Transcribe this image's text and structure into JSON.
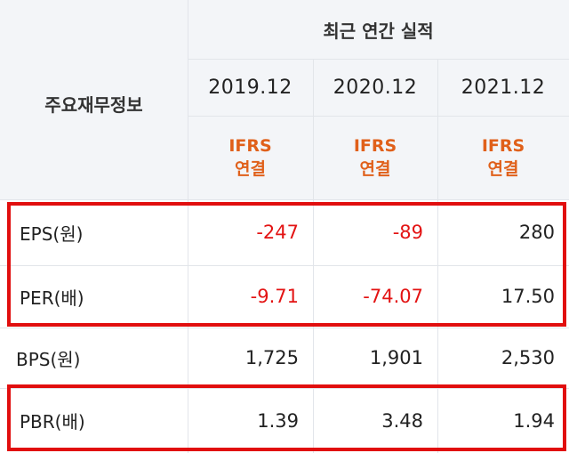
{
  "header": {
    "section_title": "최근 연간 실적",
    "row_title": "주요재무정보",
    "years": [
      "2019.12",
      "2020.12",
      "2021.12"
    ],
    "standard": [
      {
        "line1": "IFRS",
        "line2": "연결"
      },
      {
        "line1": "IFRS",
        "line2": "연결"
      },
      {
        "line1": "IFRS",
        "line2": "연결"
      }
    ]
  },
  "rows": [
    {
      "label": "EPS(원)",
      "values": [
        "-247",
        "-89",
        "280"
      ]
    },
    {
      "label": "PER(배)",
      "values": [
        "-9.71",
        "-74.07",
        "17.50"
      ]
    },
    {
      "label": "BPS(원)",
      "values": [
        "1,725",
        "1,901",
        "2,530"
      ]
    },
    {
      "label": "PBR(배)",
      "values": [
        "1.39",
        "3.48",
        "1.94"
      ]
    }
  ],
  "colors": {
    "highlight_border": "#e10e0e",
    "negative_value": "#e31313",
    "ifrs_text": "#e0601a",
    "header_bg": "#f3f5f8"
  }
}
